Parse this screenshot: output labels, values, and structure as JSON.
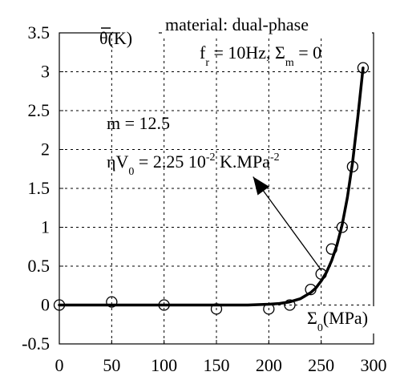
{
  "chart_data": {
    "type": "scatter",
    "title": "",
    "xlabel": "Σ0(MPa)",
    "ylabel": "θ̄(K)",
    "xlim": [
      0,
      300
    ],
    "ylim": [
      -0.5,
      3.5
    ],
    "x_ticks": [
      "0",
      "50",
      "100",
      "150",
      "200",
      "250",
      "300"
    ],
    "y_ticks": [
      "3.5",
      "3",
      "2.5",
      "2",
      "1.5",
      "1",
      "0.5",
      "0",
      "-0.5"
    ],
    "grid": true,
    "grid_style": "dashed",
    "series": [
      {
        "style": "open-circle-markers",
        "x": [
          0,
          50,
          100,
          150,
          200,
          220,
          240,
          250,
          260,
          270,
          280,
          290
        ],
        "y": [
          0.0,
          0.04,
          0.0,
          -0.05,
          -0.05,
          0.0,
          0.2,
          0.4,
          0.72,
          1.0,
          1.78,
          3.05
        ]
      },
      {
        "style": "thick-line-fit",
        "x": [
          0,
          100,
          150,
          180,
          200,
          210,
          220,
          230,
          240,
          245,
          250,
          255,
          260,
          265,
          270,
          275,
          280,
          285,
          290
        ],
        "y": [
          0.0,
          0.0,
          0.0,
          0.0,
          0.01,
          0.02,
          0.04,
          0.08,
          0.16,
          0.22,
          0.31,
          0.42,
          0.57,
          0.77,
          1.03,
          1.38,
          1.84,
          2.42,
          3.05
        ]
      }
    ],
    "annotations": {
      "header_line1": "material: dual-phase",
      "header_line2_a": "f",
      "header_line2_a_sub": "r",
      "header_line2_b": " = 10Hz, Σ",
      "header_line2_b_sub": "m",
      "header_line2_c": " = 0",
      "m_label": "m = 12.5",
      "eta_a": "ηV",
      "eta_a_sub": "0",
      "eta_b": " = 2.25 10",
      "eta_b_sup": "-2",
      "eta_c": " K.MPa",
      "eta_c_sup": "-2",
      "ylabel_main": "θ(K)",
      "xlabel_a": "Σ",
      "xlabel_a_sub": "0",
      "xlabel_b": "(MPa)"
    },
    "arrow": {
      "from": [
        250,
        0.45
      ],
      "to": [
        185,
        1.65
      ]
    }
  }
}
